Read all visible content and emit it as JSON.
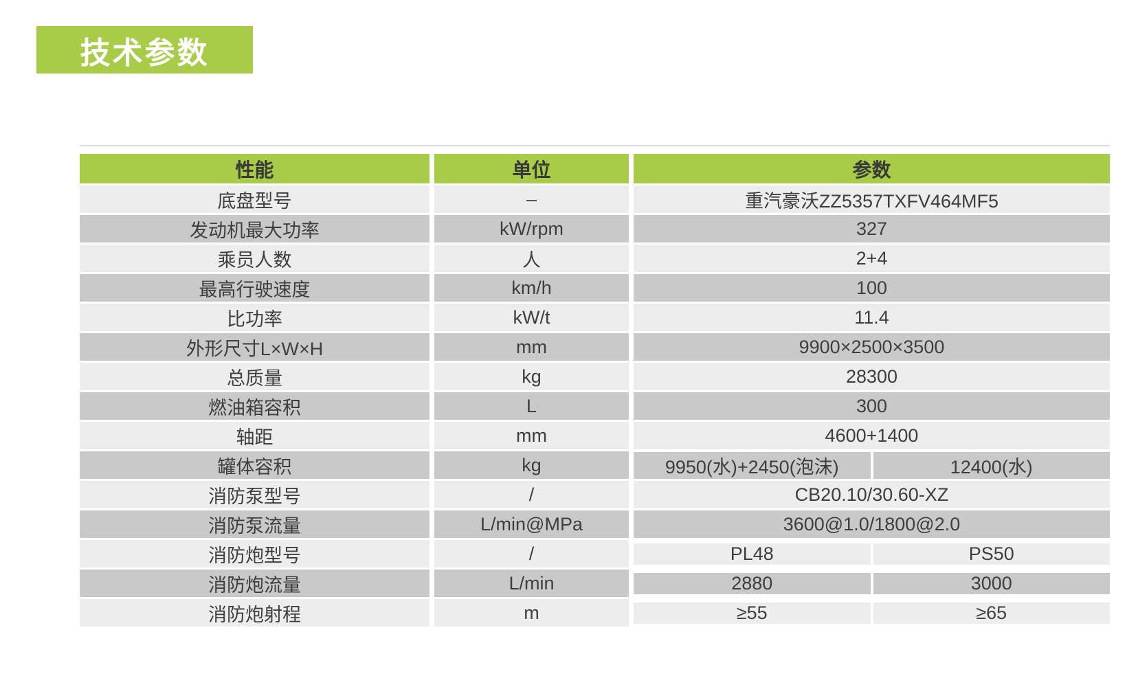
{
  "page": {
    "title": "技术参数"
  },
  "colors": {
    "accent_green": "#a8cc47",
    "row_light": "#ededed",
    "row_dark": "#c9c9c9",
    "text": "#3e3e3e",
    "title_text": "#ffffff"
  },
  "table": {
    "headers": {
      "performance": "性能",
      "unit": "单位",
      "parameter": "参数"
    },
    "rows": [
      {
        "name": "底盘型号",
        "unit": "–",
        "value": "重汽豪沃ZZ5357TXFV464MF5"
      },
      {
        "name": "发动机最大功率",
        "unit": "kW/rpm",
        "value": "327"
      },
      {
        "name": "乘员人数",
        "unit": "人",
        "value": "2+4"
      },
      {
        "name": "最高行驶速度",
        "unit": "km/h",
        "value": "100"
      },
      {
        "name": "比功率",
        "unit": "kW/t",
        "value": "11.4"
      },
      {
        "name": "外形尺寸L×W×H",
        "unit": "mm",
        "value": "9900×2500×3500"
      },
      {
        "name": "总质量",
        "unit": "kg",
        "value": "28300"
      },
      {
        "name": "燃油箱容积",
        "unit": "L",
        "value": "300"
      },
      {
        "name": "轴距",
        "unit": "mm",
        "value": "4600+1400"
      },
      {
        "name": "罐体容积",
        "unit": "kg",
        "values": [
          "9950(水)+2450(泡沫)",
          "12400(水)"
        ]
      },
      {
        "name": "消防泵型号",
        "unit": "/",
        "value": "CB20.10/30.60-XZ"
      },
      {
        "name": "消防泵流量",
        "unit": "L/min@MPa",
        "value": "3600@1.0/1800@2.0"
      },
      {
        "name": "消防炮型号",
        "unit": "/",
        "values": [
          "PL48",
          "PS50"
        ]
      },
      {
        "name": "消防炮流量",
        "unit": "L/min",
        "values": [
          "2880",
          "3000"
        ]
      },
      {
        "name": "消防炮射程",
        "unit": "m",
        "values": [
          "≥55",
          "≥65"
        ]
      }
    ]
  }
}
